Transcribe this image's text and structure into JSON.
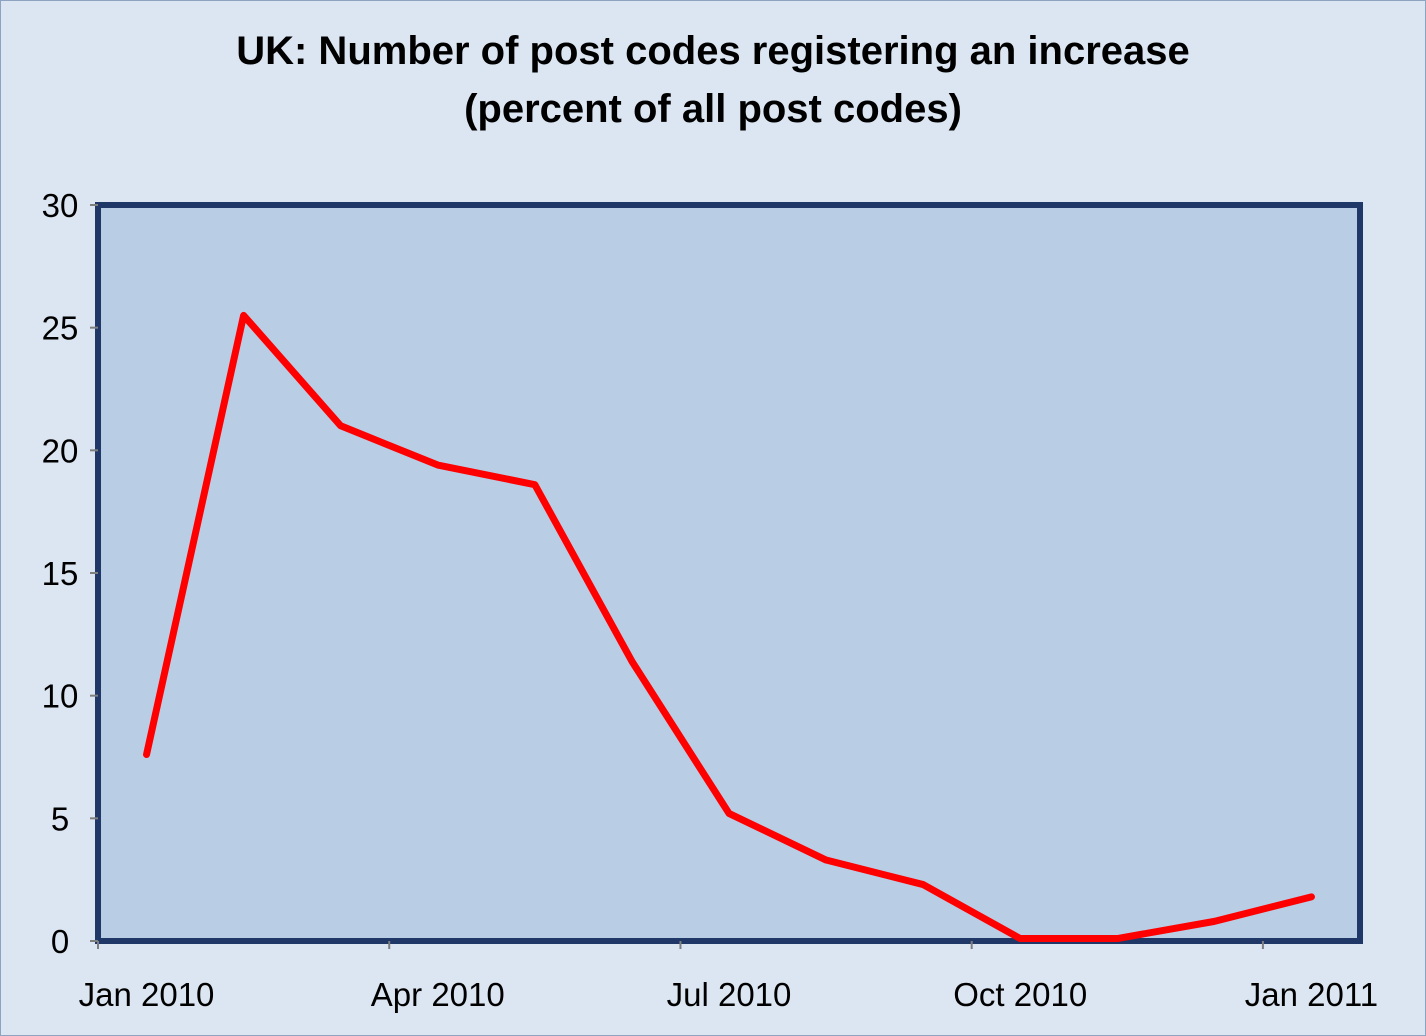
{
  "chart_data": {
    "type": "line",
    "title_lines": [
      "UK: Number of post codes registering an increase",
      "(percent of all post codes)"
    ],
    "xlabel": "",
    "ylabel": "",
    "x_tick_labels": [
      "Jan 2010",
      "Apr 2010",
      "Jul 2010",
      "Oct 2010",
      "Jan 2011"
    ],
    "y_ticks": [
      0,
      5,
      10,
      15,
      20,
      25,
      30
    ],
    "ylim": [
      0,
      30
    ],
    "grid": false,
    "legend": "none",
    "series": [
      {
        "color": "#ff0000",
        "x": [
          "2010-01",
          "2010-02",
          "2010-03",
          "2010-04",
          "2010-05",
          "2010-06",
          "2010-07",
          "2010-08",
          "2010-09",
          "2010-10",
          "2010-11",
          "2010-12",
          "2011-01"
        ],
        "values": [
          7.6,
          25.5,
          21.0,
          19.4,
          18.6,
          11.4,
          5.2,
          3.3,
          2.3,
          0.1,
          0.1,
          0.8,
          1.8
        ]
      }
    ],
    "colors": {
      "background": "#dce6f2",
      "plot_area": "#b9cde5",
      "plot_border": "#1f3868",
      "line": "#ff0000"
    }
  }
}
